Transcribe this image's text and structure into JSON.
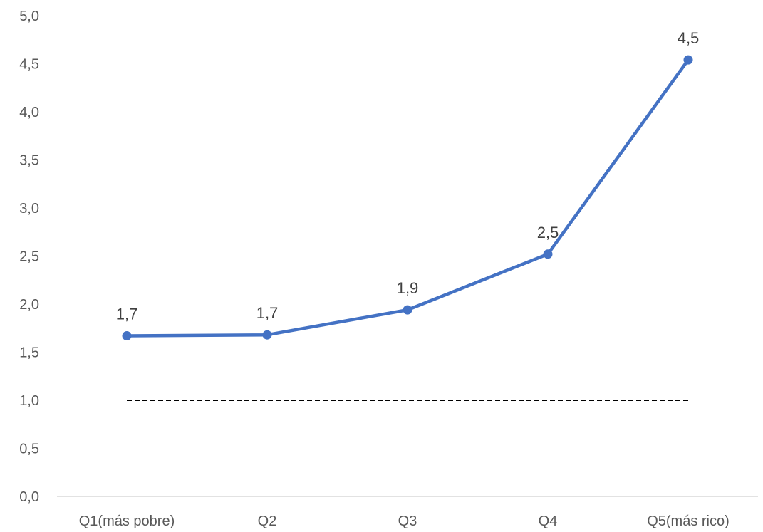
{
  "chart_data": {
    "type": "line",
    "categories": [
      "Q1(más pobre)",
      "Q2",
      "Q3",
      "Q4",
      "Q5(más rico)"
    ],
    "series": [
      {
        "values": [
          1.67,
          1.68,
          1.94,
          2.52,
          4.54
        ],
        "data_labels": [
          "1,7",
          "1,7",
          "1,9",
          "2,5",
          "4,5"
        ],
        "color": "#4472C4",
        "markers": true
      }
    ],
    "reference_line": {
      "y": 1.0,
      "style": "dashed",
      "color": "#000000"
    },
    "yticks": [
      0,
      0.5,
      1.0,
      1.5,
      2.0,
      2.5,
      3.0,
      3.5,
      4.0,
      4.5,
      5.0
    ],
    "ytick_labels": [
      "0,0",
      "0,5",
      "1,0",
      "1,5",
      "2,0",
      "2,5",
      "3,0",
      "3,5",
      "4,0",
      "4,5",
      "5,0"
    ],
    "ylim": [
      0,
      5
    ],
    "grid": false,
    "legend": "none",
    "title": "",
    "xlabel": "",
    "ylabel": ""
  }
}
